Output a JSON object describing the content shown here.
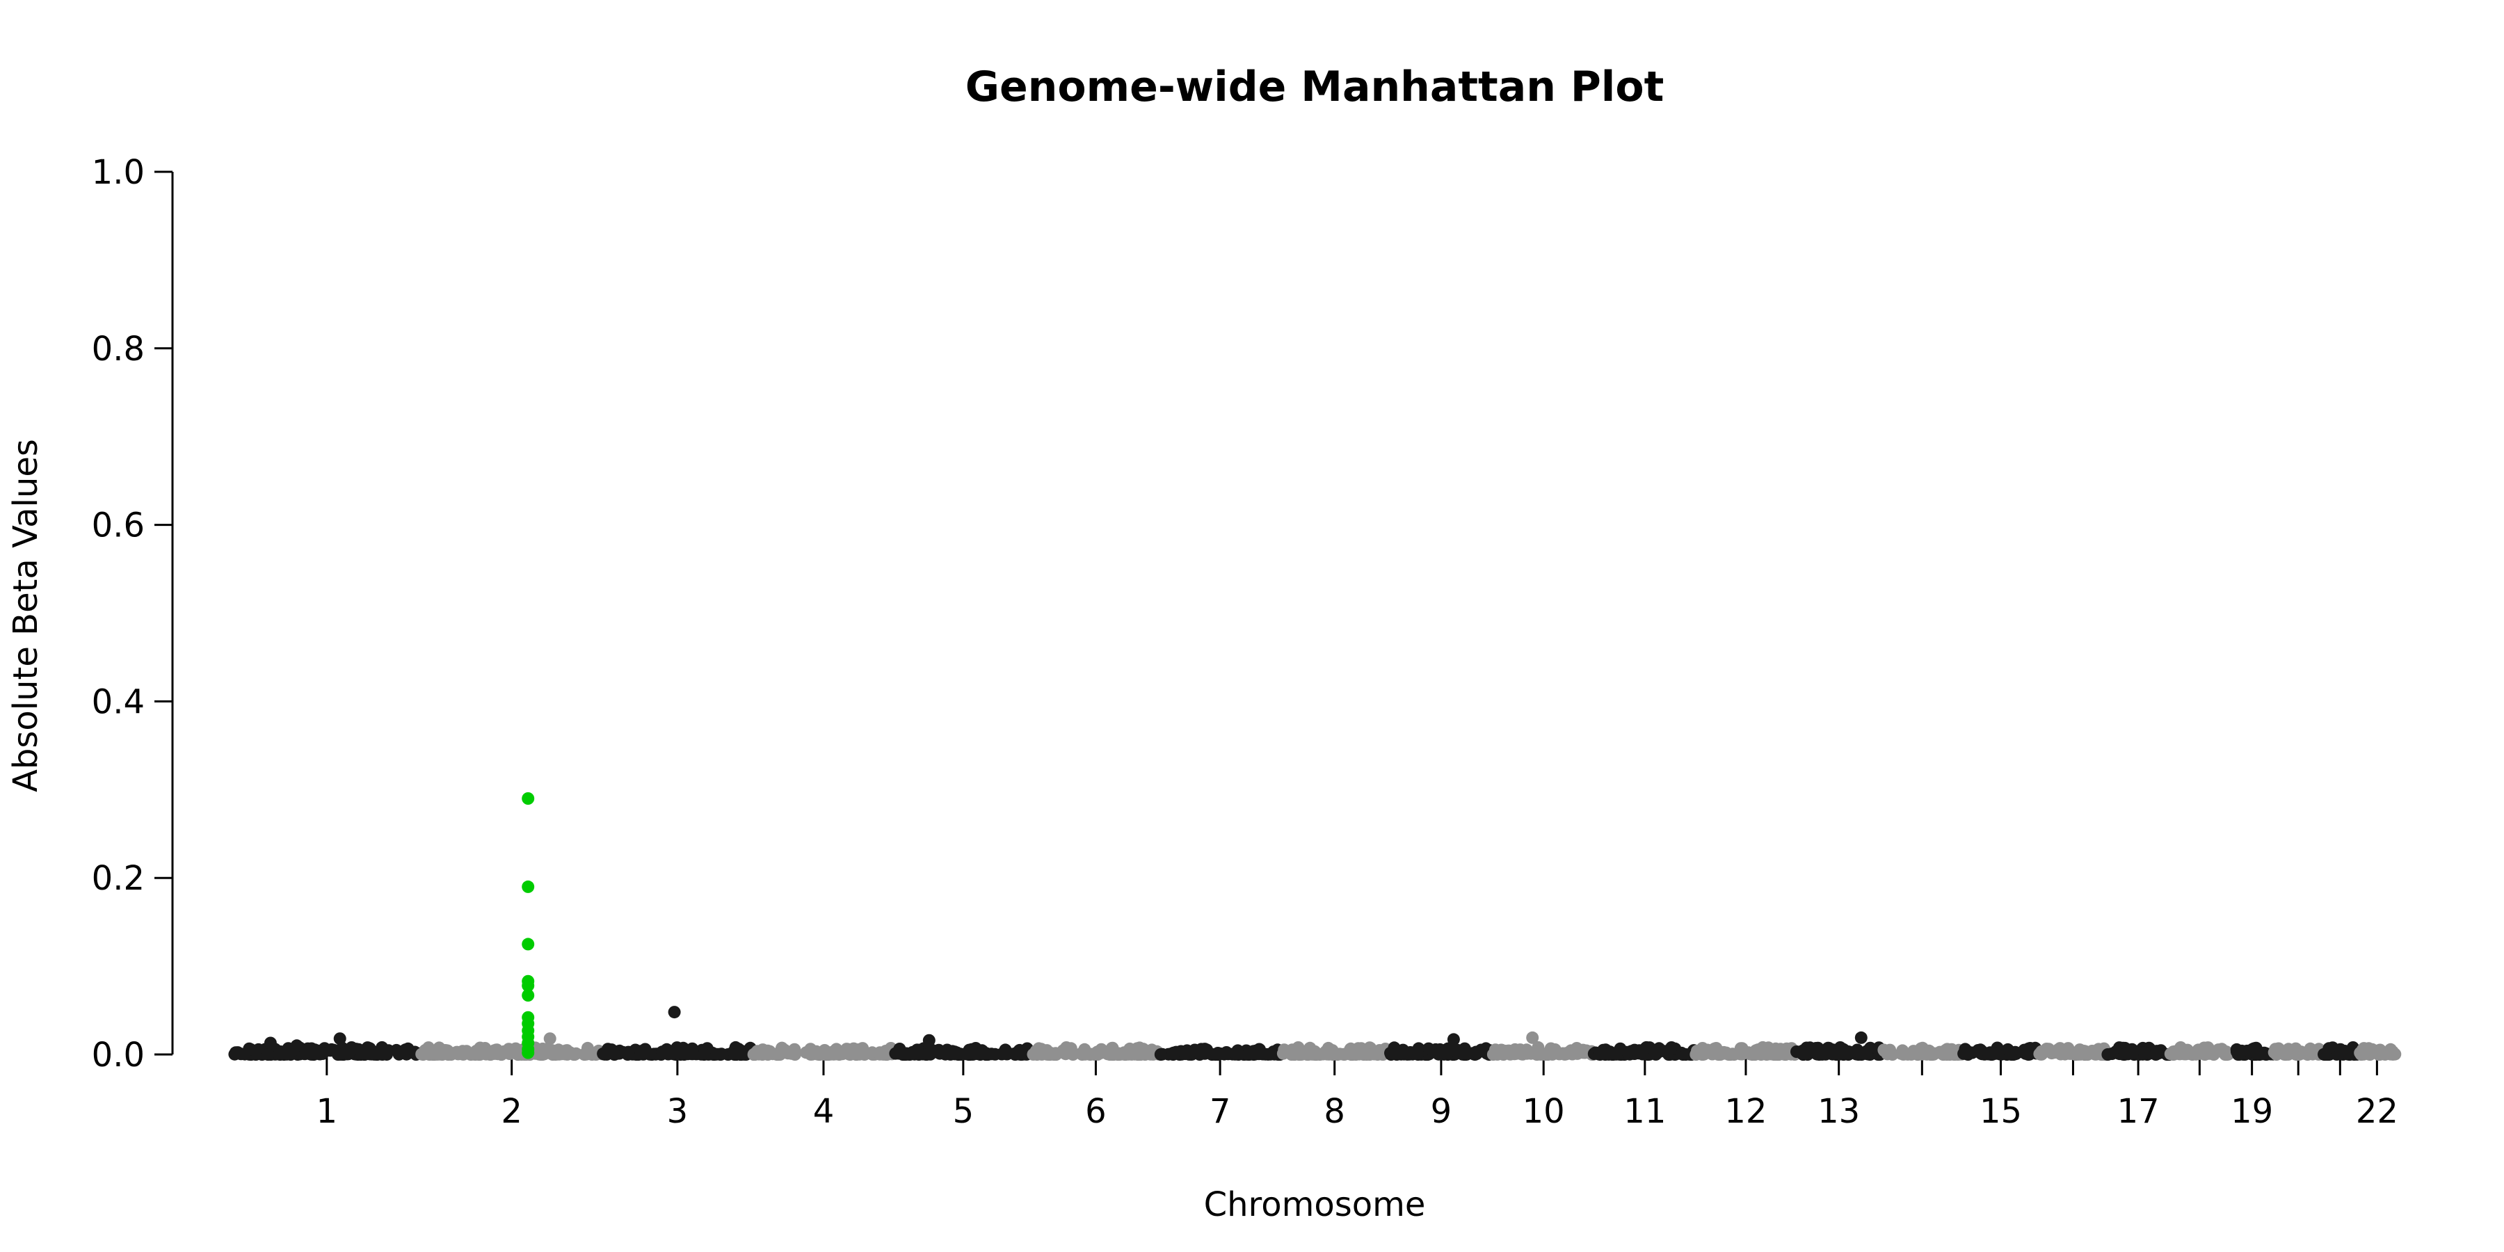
{
  "chart_data": {
    "type": "scatter",
    "title": "Genome-wide Manhattan Plot",
    "xlabel": "Chromosome",
    "ylabel": "Absolute Beta Values",
    "ylim": [
      0,
      1
    ],
    "yticks": [
      "0.0",
      "0.2",
      "0.4",
      "0.6",
      "0.8",
      "1.0"
    ],
    "xtick_labels": [
      "1",
      "2",
      "3",
      "4",
      "5",
      "6",
      "7",
      "8",
      "9",
      "10",
      "11",
      "12",
      "13",
      "15",
      "17",
      "19",
      "22"
    ],
    "chromosomes": [
      "1",
      "2",
      "3",
      "4",
      "5",
      "6",
      "7",
      "8",
      "9",
      "10",
      "11",
      "12",
      "13",
      "14",
      "15",
      "16",
      "17",
      "18",
      "19",
      "20",
      "21",
      "22"
    ],
    "colors": {
      "odd": "#1a1a1a",
      "even": "#909090",
      "highlight": "#00cc00"
    },
    "grid": false,
    "highlight_series": {
      "chromosome": "2",
      "values": [
        0.29,
        0.19,
        0.125,
        0.083,
        0.078,
        0.067,
        0.042,
        0.035,
        0.027,
        0.02,
        0.013,
        0.006,
        0.002
      ]
    },
    "notable_points": [
      {
        "chromosome": "1",
        "value": 0.013
      },
      {
        "chromosome": "1",
        "value": 0.018
      },
      {
        "chromosome": "1",
        "value": 0.01
      },
      {
        "chromosome": "2",
        "value": 0.018
      },
      {
        "chromosome": "3",
        "value": 0.048
      },
      {
        "chromosome": "5",
        "value": 0.016
      },
      {
        "chromosome": "9",
        "value": 0.017
      },
      {
        "chromosome": "10",
        "value": 0.019
      },
      {
        "chromosome": "13",
        "value": 0.019
      }
    ]
  }
}
